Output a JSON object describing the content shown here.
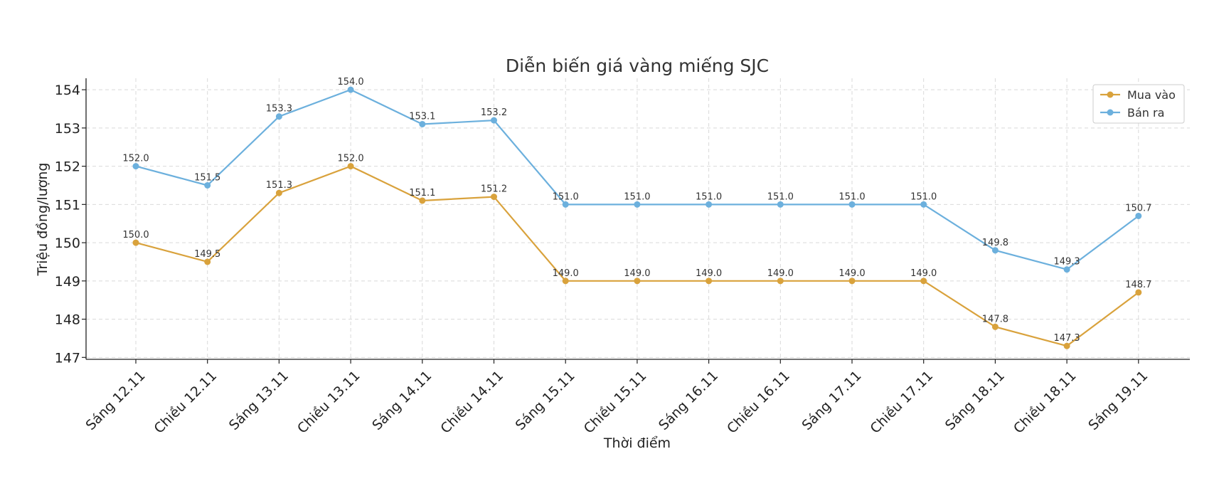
{
  "chart_data": {
    "type": "line",
    "title": "Diễn biến giá vàng miếng SJC",
    "xlabel": "Thời điểm",
    "ylabel": "Triệu đồng/lượng",
    "ylim": [
      146.95,
      154.3
    ],
    "yticks": [
      147,
      148,
      149,
      150,
      151,
      152,
      153,
      154
    ],
    "grid": true,
    "legend_position": "top-right",
    "categories": [
      "Sáng 12.11",
      "Chiều 12.11",
      "Sáng 13.11",
      "Chiều 13.11",
      "Sáng 14.11",
      "Chiều 14.11",
      "Sáng 15.11",
      "Chiều 15.11",
      "Sáng 16.11",
      "Chiều 16.11",
      "Sáng 17.11",
      "Chiều 17.11",
      "Sáng 18.11",
      "Chiều 18.11",
      "Sáng 19.11"
    ],
    "series": [
      {
        "name": "Mua vào",
        "color": "#D9A23C",
        "values": [
          150.0,
          149.5,
          151.3,
          152.0,
          151.1,
          151.2,
          149.0,
          149.0,
          149.0,
          149.0,
          149.0,
          149.0,
          147.8,
          147.3,
          148.7
        ],
        "labels": [
          "150.0",
          "149.5",
          "151.3",
          "152.0",
          "151.1",
          "151.2",
          "149.0",
          "149.0",
          "149.0",
          "149.0",
          "149.0",
          "149.0",
          "147.8",
          "147.3",
          "148.7"
        ]
      },
      {
        "name": "Bán ra",
        "color": "#6CB0DD",
        "values": [
          152.0,
          151.5,
          153.3,
          154.0,
          153.1,
          153.2,
          151.0,
          151.0,
          151.0,
          151.0,
          151.0,
          151.0,
          149.8,
          149.3,
          150.7
        ],
        "labels": [
          "152.0",
          "151.5",
          "153.3",
          "154.0",
          "153.1",
          "153.2",
          "151.0",
          "151.0",
          "151.0",
          "151.0",
          "151.0",
          "151.0",
          "149.8",
          "149.3",
          "150.7"
        ]
      }
    ]
  }
}
